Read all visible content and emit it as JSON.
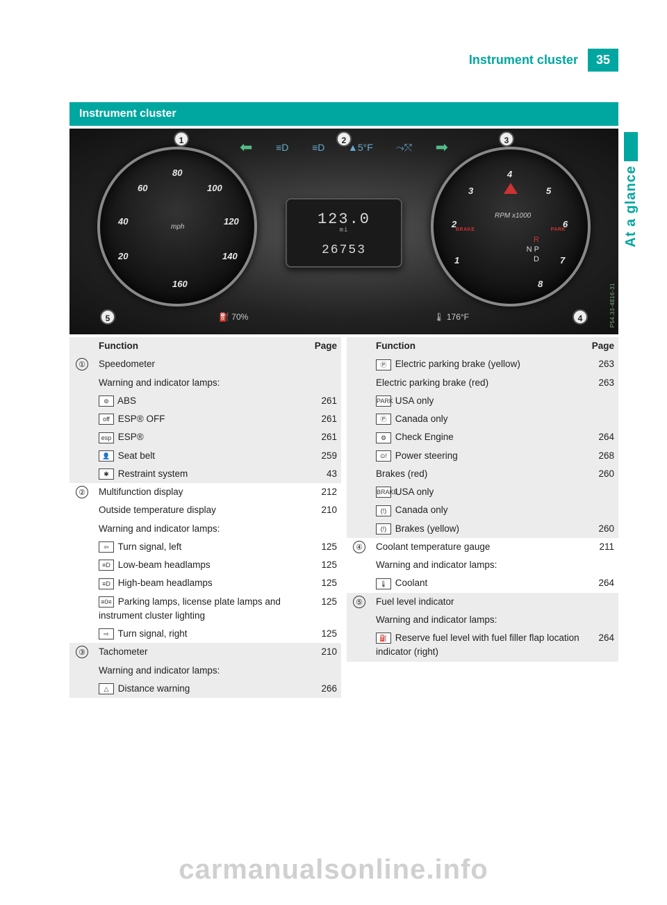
{
  "header": {
    "running_title": "Instrument cluster",
    "page_number": "35",
    "side_tab": "At a glance"
  },
  "section": {
    "title": "Instrument cluster"
  },
  "cluster_image": {
    "callouts": [
      "1",
      "2",
      "3",
      "4",
      "5"
    ],
    "speedo": {
      "ticks": [
        "20",
        "40",
        "60",
        "80",
        "100",
        "120",
        "140",
        "160"
      ],
      "unit": "mph"
    },
    "tacho": {
      "ticks": [
        "1",
        "2",
        "3",
        "4",
        "5",
        "6",
        "7",
        "8"
      ],
      "unit": "RPM x1000",
      "gear_r": "R",
      "gear_n": "N P",
      "gear_d": "D",
      "brake": "BRAKE",
      "park": "PARK"
    },
    "center": {
      "trip": "123.0",
      "mi_label": "mi",
      "odo": "26753"
    },
    "top": {
      "left_arrow": "⬅",
      "beam1": "≡D",
      "beam2": "≡D",
      "temp": "▲5°F",
      "cruise": "⤳⤲",
      "right_arrow": "➡"
    },
    "bottom": {
      "fuel": "⛽ 70%",
      "coolant": "🌡 176°F"
    },
    "ref": "P54.33-4816-31"
  },
  "columns": {
    "left": {
      "header": {
        "func": "Function",
        "page": "Page"
      },
      "groups": [
        {
          "shade": true,
          "num": "①",
          "rows": [
            {
              "text": "Speedometer",
              "page": ""
            },
            {
              "text": "Warning and indicator lamps:",
              "page": ""
            },
            {
              "icon": "⊚",
              "text": "ABS",
              "page": "261"
            },
            {
              "icon": "off",
              "text": "ESP® OFF",
              "page": "261"
            },
            {
              "icon": "esp",
              "text": "ESP®",
              "page": "261"
            },
            {
              "icon": "👤",
              "text": "Seat belt",
              "page": "259"
            },
            {
              "icon": "✱",
              "text": "Restraint system",
              "page": "43"
            }
          ]
        },
        {
          "shade": false,
          "num": "②",
          "rows": [
            {
              "text": "Multifunction display",
              "page": "212"
            },
            {
              "text": "Outside temperature display",
              "page": "210"
            },
            {
              "text": "Warning and indicator lamps:",
              "page": ""
            },
            {
              "icon": "⇦",
              "text": "Turn signal, left",
              "page": "125"
            },
            {
              "icon": "≡D",
              "text": "Low-beam headlamps",
              "page": "125"
            },
            {
              "icon": "≡D",
              "text": "High-beam headlamps",
              "page": "125"
            },
            {
              "icon": "≡0≡",
              "text": "Parking lamps, license plate lamps and instrument cluster lighting",
              "page": "125"
            },
            {
              "icon": "⇨",
              "text": "Turn signal, right",
              "page": "125"
            }
          ]
        },
        {
          "shade": true,
          "num": "③",
          "rows": [
            {
              "text": "Tachometer",
              "page": "210"
            },
            {
              "text": "Warning and indicator lamps:",
              "page": ""
            },
            {
              "icon": "△",
              "text": "Distance warning",
              "page": "266"
            }
          ]
        }
      ]
    },
    "right": {
      "header": {
        "func": "Function",
        "page": "Page"
      },
      "groups": [
        {
          "shade": true,
          "num": "",
          "rows": [
            {
              "icon": "Ⓟ",
              "text": "Electric parking brake (yellow)",
              "page": "263"
            },
            {
              "text": "Electric parking brake (red)",
              "page": "263"
            },
            {
              "icon": "PARK",
              "text": "USA only",
              "page": ""
            },
            {
              "icon": "Ⓟ",
              "text": "Canada only",
              "page": ""
            },
            {
              "icon": "⚙",
              "text": "Check Engine",
              "page": "264"
            },
            {
              "icon": "⊙!",
              "text": "Power steering",
              "page": "268"
            },
            {
              "text": "Brakes (red)",
              "page": "260"
            },
            {
              "icon": "BRAKE",
              "text": "USA only",
              "page": ""
            },
            {
              "icon": "(!)",
              "text": "Canada only",
              "page": ""
            },
            {
              "icon": "(!)",
              "text": "Brakes (yellow)",
              "page": "260"
            }
          ]
        },
        {
          "shade": false,
          "num": "④",
          "rows": [
            {
              "text": "Coolant temperature gauge",
              "page": "211"
            },
            {
              "text": "Warning and indicator lamps:",
              "page": ""
            },
            {
              "icon": "🌡",
              "text": "Coolant",
              "page": "264"
            }
          ]
        },
        {
          "shade": true,
          "num": "⑤",
          "rows": [
            {
              "text": "Fuel level indicator",
              "page": ""
            },
            {
              "text": "Warning and indicator lamps:",
              "page": ""
            },
            {
              "icon": "⛽",
              "text": "Reserve fuel level with fuel filler flap location indicator (right)",
              "page": "264"
            }
          ]
        }
      ]
    }
  },
  "watermark": "carmanualsonline.info"
}
